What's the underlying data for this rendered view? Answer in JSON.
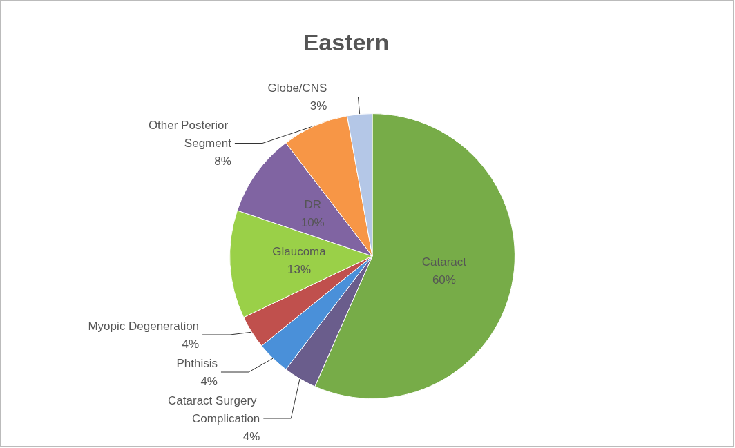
{
  "chart_data": {
    "type": "pie",
    "title": "Eastern",
    "categories": [
      "Cataract",
      "Cataract Surgery Complication",
      "Phthisis",
      "Myopic Degeneration",
      "Glaucoma",
      "DR",
      "Other Posterior Segment",
      "Globe/CNS"
    ],
    "values": [
      60,
      4,
      4,
      4,
      13,
      10,
      8,
      3
    ],
    "value_labels": [
      "60%",
      "4%",
      "4%",
      "4%",
      "13%",
      "10%",
      "8%",
      "3%"
    ],
    "colors": [
      "#77ac48",
      "#6a5d8c",
      "#4a90d9",
      "#c0504d",
      "#9ad048",
      "#8064a2",
      "#f79646",
      "#b4c7e7"
    ],
    "legend": false
  }
}
